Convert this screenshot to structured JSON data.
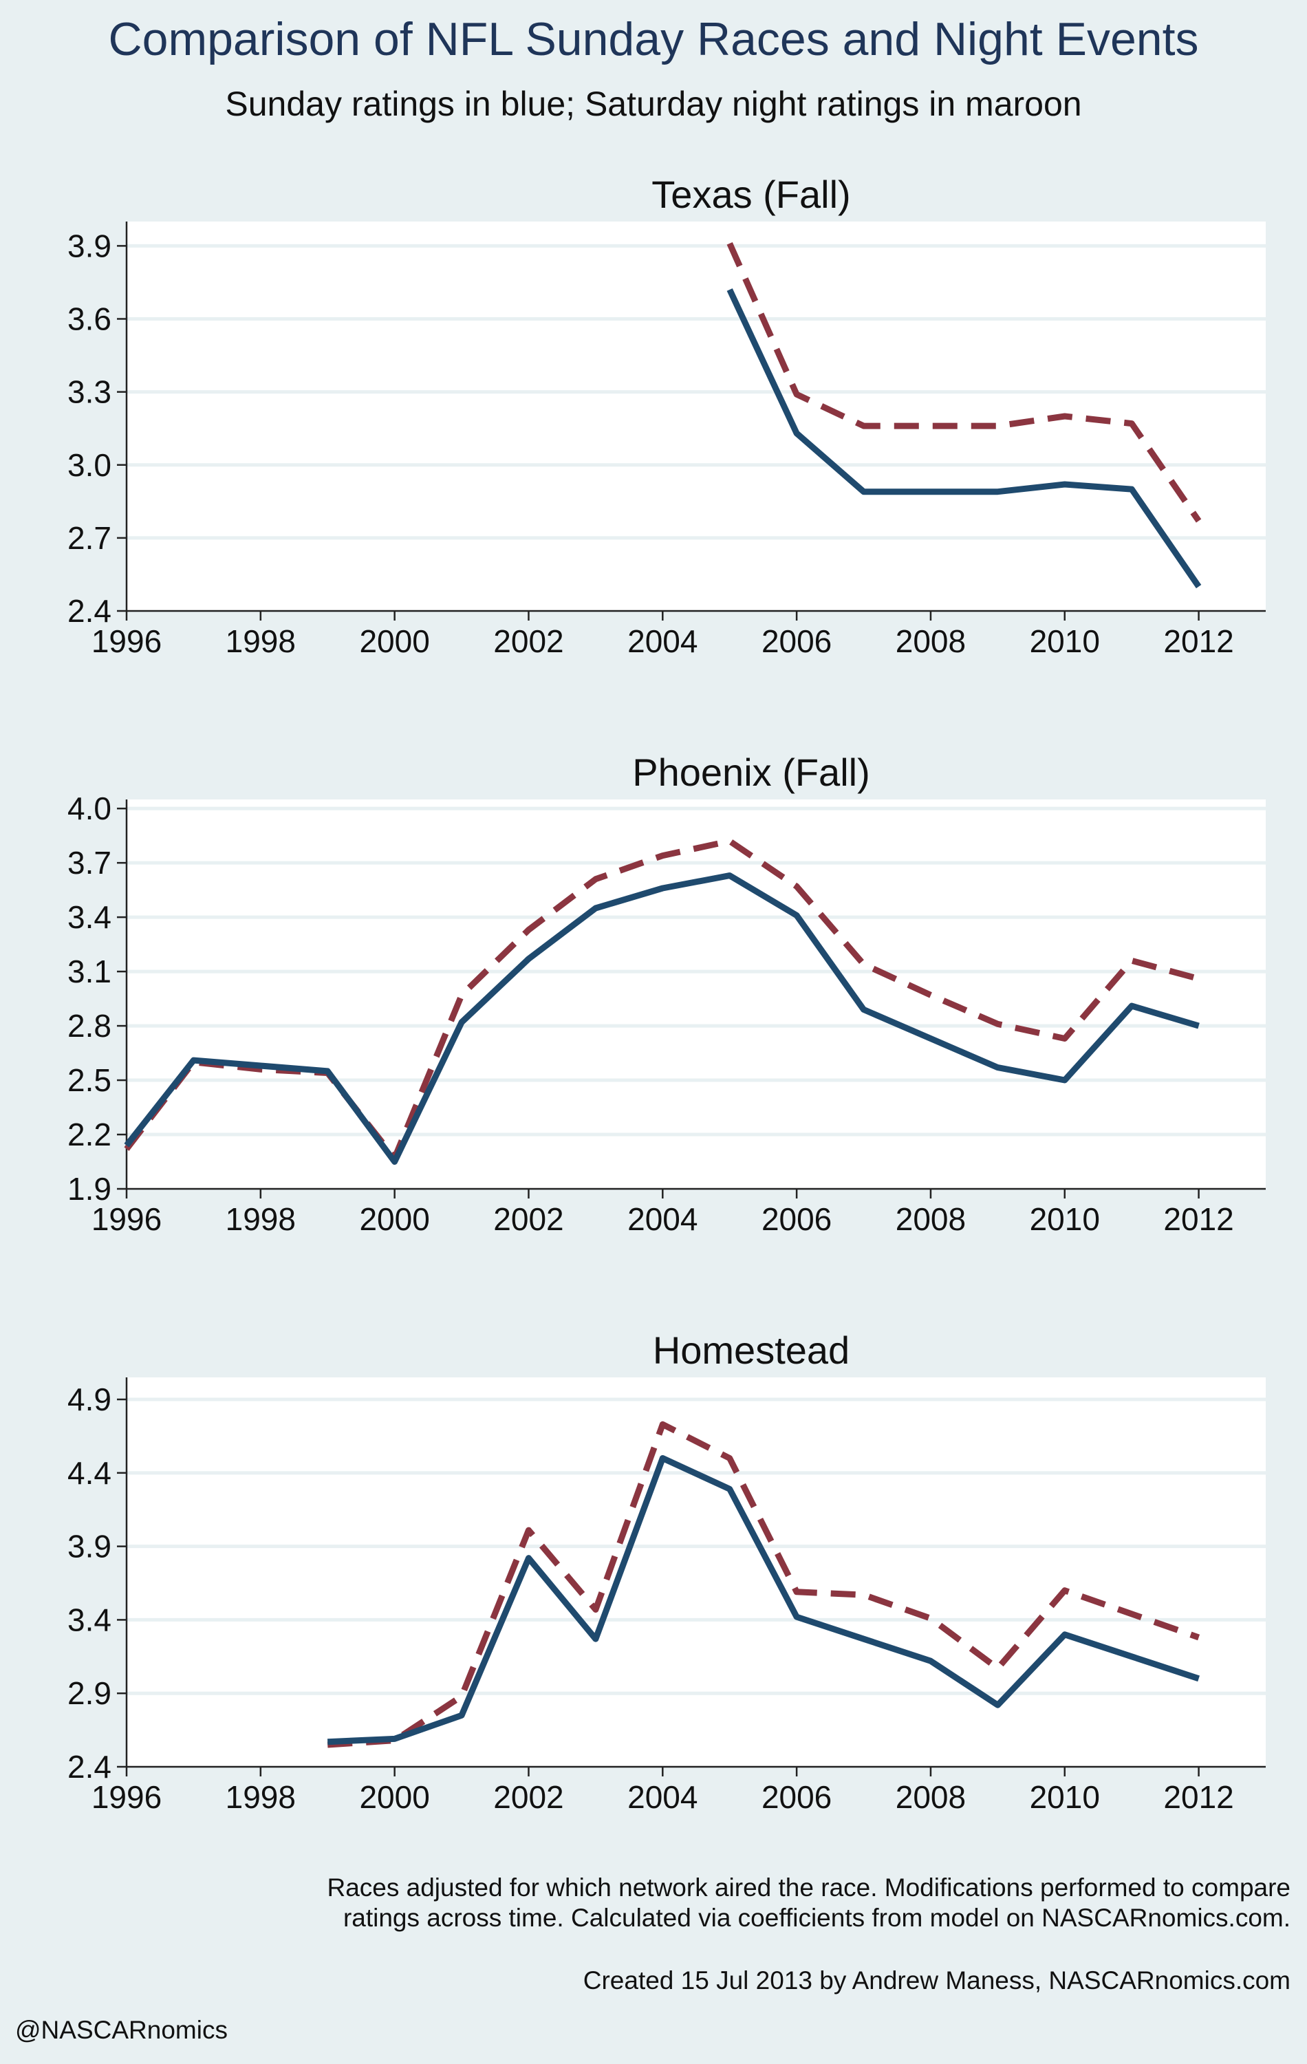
{
  "title": "Comparison of NFL Sunday Races and Night Events",
  "subtitle": "Sunday ratings in blue; Saturday night ratings in maroon",
  "footnote_line1": "Races adjusted for which network aired the race. Modifications performed to compare",
  "footnote_line2": "ratings across time. Calculated via coefficients from model on NASCARnomics.com.",
  "credit": "Created 15 Jul 2013 by Andrew Maness, NASCARnomics.com",
  "handle": "@NASCARnomics",
  "colors": {
    "sunday": "#1f4a6e",
    "saturday": "#8b3540"
  },
  "chart_data": [
    {
      "type": "line",
      "title": "Texas (Fall)",
      "xlim": [
        1996,
        2013
      ],
      "xticks": [
        1996,
        1998,
        2000,
        2002,
        2004,
        2006,
        2008,
        2010,
        2012
      ],
      "ylim": [
        2.4,
        4.0
      ],
      "yticks": [
        2.4,
        2.7,
        3.0,
        3.3,
        3.6,
        3.9
      ],
      "series": [
        {
          "color": "#1f4a6e",
          "style": "solid",
          "x": [
            2005,
            2006,
            2007,
            2008,
            2009,
            2010,
            2011,
            2012
          ],
          "y": [
            3.72,
            3.13,
            2.89,
            2.89,
            2.89,
            2.92,
            2.9,
            2.5
          ]
        },
        {
          "color": "#8b3540",
          "style": "dashed",
          "x": [
            2005,
            2006,
            2007,
            2008,
            2009,
            2010,
            2011,
            2012
          ],
          "y": [
            3.91,
            3.29,
            3.16,
            3.16,
            3.16,
            3.2,
            3.17,
            2.77
          ]
        }
      ]
    },
    {
      "type": "line",
      "title": "Phoenix (Fall)",
      "xlim": [
        1996,
        2013
      ],
      "xticks": [
        1996,
        1998,
        2000,
        2002,
        2004,
        2006,
        2008,
        2010,
        2012
      ],
      "ylim": [
        1.9,
        4.05
      ],
      "yticks": [
        1.9,
        2.2,
        2.5,
        2.8,
        3.1,
        3.4,
        3.7,
        4.0
      ],
      "series": [
        {
          "color": "#1f4a6e",
          "style": "solid",
          "x": [
            1996,
            1997,
            1998,
            1999,
            2000,
            2001,
            2002,
            2003,
            2004,
            2005,
            2006,
            2007,
            2008,
            2009,
            2010,
            2011,
            2012
          ],
          "y": [
            2.14,
            2.61,
            2.58,
            2.55,
            2.05,
            2.82,
            3.17,
            3.45,
            3.56,
            3.63,
            3.41,
            2.89,
            2.73,
            2.57,
            2.5,
            2.91,
            2.8
          ]
        },
        {
          "color": "#8b3540",
          "style": "dashed",
          "x": [
            1996,
            1997,
            1998,
            1999,
            2000,
            2001,
            2002,
            2003,
            2004,
            2005,
            2006,
            2007,
            2008,
            2009,
            2010,
            2011,
            2012
          ],
          "y": [
            2.12,
            2.6,
            2.56,
            2.54,
            2.07,
            2.97,
            3.33,
            3.61,
            3.74,
            3.82,
            3.57,
            3.14,
            2.97,
            2.81,
            2.73,
            3.16,
            3.06
          ]
        }
      ]
    },
    {
      "type": "line",
      "title": "Homestead",
      "xlim": [
        1996,
        2013
      ],
      "xticks": [
        1996,
        1998,
        2000,
        2002,
        2004,
        2006,
        2008,
        2010,
        2012
      ],
      "ylim": [
        2.4,
        5.05
      ],
      "yticks": [
        2.4,
        2.9,
        3.4,
        3.9,
        4.4,
        4.9
      ],
      "series": [
        {
          "color": "#1f4a6e",
          "style": "solid",
          "x": [
            1999,
            2000,
            2001,
            2002,
            2003,
            2004,
            2005,
            2006,
            2007,
            2008,
            2009,
            2010,
            2011,
            2012
          ],
          "y": [
            2.57,
            2.59,
            2.75,
            3.82,
            3.27,
            4.5,
            4.29,
            3.42,
            3.27,
            3.12,
            2.82,
            3.3,
            3.15,
            3.0
          ]
        },
        {
          "color": "#8b3540",
          "style": "dashed",
          "x": [
            1999,
            2000,
            2001,
            2002,
            2003,
            2004,
            2005,
            2006,
            2007,
            2008,
            2009,
            2010,
            2011,
            2012
          ],
          "y": [
            2.55,
            2.58,
            2.88,
            4.01,
            3.47,
            4.73,
            4.5,
            3.59,
            3.57,
            3.41,
            3.07,
            3.6,
            3.44,
            3.28
          ]
        }
      ]
    }
  ]
}
